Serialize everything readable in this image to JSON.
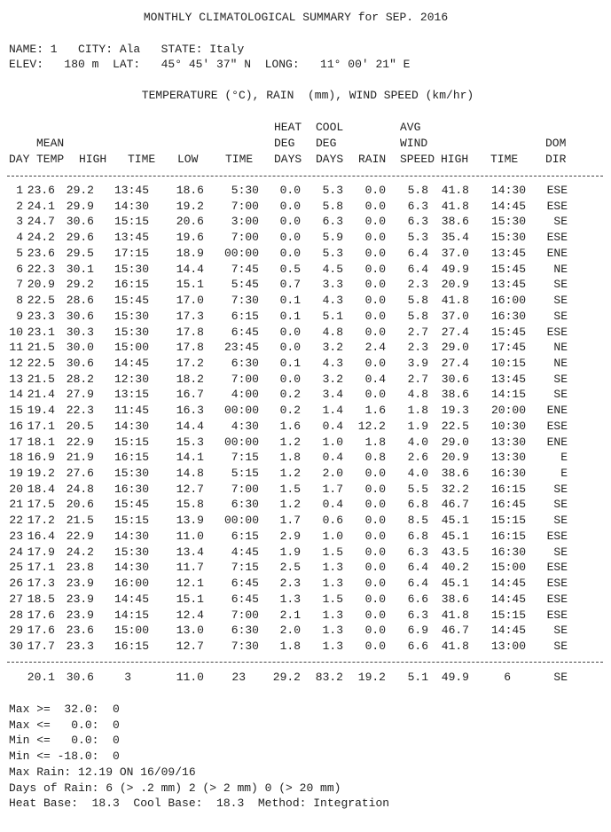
{
  "title": "MONTHLY CLIMATOLOGICAL SUMMARY for SEP. 2016",
  "station": {
    "line1": "NAME: 1   CITY: Ala   STATE: Italy",
    "line2": "ELEV:   180 m  LAT:   45° 45' 37\" N  LONG:   11° 00' 21\" E"
  },
  "units_heading": "TEMPERATURE (°C), RAIN  (mm), WIND SPEED (km/hr)",
  "columns": [
    {
      "lines": [
        "DAY"
      ]
    },
    {
      "lines": [
        "MEAN",
        "TEMP"
      ]
    },
    {
      "lines": [
        "HIGH"
      ]
    },
    {
      "lines": [
        "TIME"
      ]
    },
    {
      "lines": [
        "LOW"
      ]
    },
    {
      "lines": [
        "TIME"
      ]
    },
    {
      "lines": [
        "HEAT",
        "DEG",
        "DAYS"
      ]
    },
    {
      "lines": [
        "COOL",
        "DEG",
        "DAYS"
      ]
    },
    {
      "lines": [
        "RAIN"
      ]
    },
    {
      "lines": [
        "AVG",
        "WIND",
        "SPEED"
      ]
    },
    {
      "lines": [
        "HIGH"
      ]
    },
    {
      "lines": [
        "TIME"
      ]
    },
    {
      "lines": [
        "DOM",
        "DIR"
      ]
    }
  ],
  "rows": [
    [
      "1",
      "23.6",
      "29.2",
      "13:45",
      "18.6",
      "5:30",
      "0.0",
      "5.3",
      "0.0",
      "5.8",
      "41.8",
      "14:30",
      "ESE"
    ],
    [
      "2",
      "24.1",
      "29.9",
      "14:30",
      "19.2",
      "7:00",
      "0.0",
      "5.8",
      "0.0",
      "6.3",
      "41.8",
      "14:45",
      "ESE"
    ],
    [
      "3",
      "24.7",
      "30.6",
      "15:15",
      "20.6",
      "3:00",
      "0.0",
      "6.3",
      "0.0",
      "6.3",
      "38.6",
      "15:30",
      "SE"
    ],
    [
      "4",
      "24.2",
      "29.6",
      "13:45",
      "19.6",
      "7:00",
      "0.0",
      "5.9",
      "0.0",
      "5.3",
      "35.4",
      "15:30",
      "ESE"
    ],
    [
      "5",
      "23.6",
      "29.5",
      "17:15",
      "18.9",
      "00:00",
      "0.0",
      "5.3",
      "0.0",
      "6.4",
      "37.0",
      "13:45",
      "ENE"
    ],
    [
      "6",
      "22.3",
      "30.1",
      "15:30",
      "14.4",
      "7:45",
      "0.5",
      "4.5",
      "0.0",
      "6.4",
      "49.9",
      "15:45",
      "NE"
    ],
    [
      "7",
      "20.9",
      "29.2",
      "16:15",
      "15.1",
      "5:45",
      "0.7",
      "3.3",
      "0.0",
      "2.3",
      "20.9",
      "13:45",
      "SE"
    ],
    [
      "8",
      "22.5",
      "28.6",
      "15:45",
      "17.0",
      "7:30",
      "0.1",
      "4.3",
      "0.0",
      "5.8",
      "41.8",
      "16:00",
      "SE"
    ],
    [
      "9",
      "23.3",
      "30.6",
      "15:30",
      "17.3",
      "6:15",
      "0.1",
      "5.1",
      "0.0",
      "5.8",
      "37.0",
      "16:30",
      "SE"
    ],
    [
      "10",
      "23.1",
      "30.3",
      "15:30",
      "17.8",
      "6:45",
      "0.0",
      "4.8",
      "0.0",
      "2.7",
      "27.4",
      "15:45",
      "ESE"
    ],
    [
      "11",
      "21.5",
      "30.0",
      "15:00",
      "17.8",
      "23:45",
      "0.0",
      "3.2",
      "2.4",
      "2.3",
      "29.0",
      "17:45",
      "NE"
    ],
    [
      "12",
      "22.5",
      "30.6",
      "14:45",
      "17.2",
      "6:30",
      "0.1",
      "4.3",
      "0.0",
      "3.9",
      "27.4",
      "10:15",
      "NE"
    ],
    [
      "13",
      "21.5",
      "28.2",
      "12:30",
      "18.2",
      "7:00",
      "0.0",
      "3.2",
      "0.4",
      "2.7",
      "30.6",
      "13:45",
      "SE"
    ],
    [
      "14",
      "21.4",
      "27.9",
      "13:15",
      "16.7",
      "4:00",
      "0.2",
      "3.4",
      "0.0",
      "4.8",
      "38.6",
      "14:15",
      "SE"
    ],
    [
      "15",
      "19.4",
      "22.3",
      "11:45",
      "16.3",
      "00:00",
      "0.2",
      "1.4",
      "1.6",
      "1.8",
      "19.3",
      "20:00",
      "ENE"
    ],
    [
      "16",
      "17.1",
      "20.5",
      "14:30",
      "14.4",
      "4:30",
      "1.6",
      "0.4",
      "12.2",
      "1.9",
      "22.5",
      "10:30",
      "ESE"
    ],
    [
      "17",
      "18.1",
      "22.9",
      "15:15",
      "15.3",
      "00:00",
      "1.2",
      "1.0",
      "1.8",
      "4.0",
      "29.0",
      "13:30",
      "ENE"
    ],
    [
      "18",
      "16.9",
      "21.9",
      "16:15",
      "14.1",
      "7:15",
      "1.8",
      "0.4",
      "0.8",
      "2.6",
      "20.9",
      "13:30",
      "E"
    ],
    [
      "19",
      "19.2",
      "27.6",
      "15:30",
      "14.8",
      "5:15",
      "1.2",
      "2.0",
      "0.0",
      "4.0",
      "38.6",
      "16:30",
      "E"
    ],
    [
      "20",
      "18.4",
      "24.8",
      "16:30",
      "12.7",
      "7:00",
      "1.5",
      "1.7",
      "0.0",
      "5.5",
      "32.2",
      "16:15",
      "SE"
    ],
    [
      "21",
      "17.5",
      "20.6",
      "15:45",
      "15.8",
      "6:30",
      "1.2",
      "0.4",
      "0.0",
      "6.8",
      "46.7",
      "16:45",
      "SE"
    ],
    [
      "22",
      "17.2",
      "21.5",
      "15:15",
      "13.9",
      "00:00",
      "1.7",
      "0.6",
      "0.0",
      "8.5",
      "45.1",
      "15:15",
      "SE"
    ],
    [
      "23",
      "16.4",
      "22.9",
      "14:30",
      "11.0",
      "6:15",
      "2.9",
      "1.0",
      "0.0",
      "6.8",
      "45.1",
      "16:15",
      "ESE"
    ],
    [
      "24",
      "17.9",
      "24.2",
      "15:30",
      "13.4",
      "4:45",
      "1.9",
      "1.5",
      "0.0",
      "6.3",
      "43.5",
      "16:30",
      "SE"
    ],
    [
      "25",
      "17.1",
      "23.8",
      "14:30",
      "11.7",
      "7:15",
      "2.5",
      "1.3",
      "0.0",
      "6.4",
      "40.2",
      "15:00",
      "ESE"
    ],
    [
      "26",
      "17.3",
      "23.9",
      "16:00",
      "12.1",
      "6:45",
      "2.3",
      "1.3",
      "0.0",
      "6.4",
      "45.1",
      "14:45",
      "ESE"
    ],
    [
      "27",
      "18.5",
      "23.9",
      "14:45",
      "15.1",
      "6:45",
      "1.3",
      "1.5",
      "0.0",
      "6.6",
      "38.6",
      "14:45",
      "ESE"
    ],
    [
      "28",
      "17.6",
      "23.9",
      "14:15",
      "12.4",
      "7:00",
      "2.1",
      "1.3",
      "0.0",
      "6.3",
      "41.8",
      "15:15",
      "ESE"
    ],
    [
      "29",
      "17.6",
      "23.6",
      "15:00",
      "13.0",
      "6:30",
      "2.0",
      "1.3",
      "0.0",
      "6.9",
      "46.7",
      "14:45",
      "SE"
    ],
    [
      "30",
      "17.7",
      "23.3",
      "16:15",
      "12.7",
      "7:30",
      "1.8",
      "1.3",
      "0.0",
      "6.6",
      "41.8",
      "13:00",
      "SE"
    ]
  ],
  "totals": [
    "20.1",
    "30.6",
    "3",
    "11.0",
    "23",
    "29.2",
    "83.2",
    "19.2",
    "5.1",
    "49.9",
    "6",
    "SE"
  ],
  "footer": [
    "Max >=  32.0:  0",
    "Max <=   0.0:  0",
    "Min <=   0.0:  0",
    "Min <= -18.0:  0",
    "Max Rain: 12.19 ON 16/09/16",
    "Days of Rain: 6 (> .2 mm) 2 (> 2 mm) 0 (> 20 mm)",
    "Heat Base:  18.3  Cool Base:  18.3  Method: Integration"
  ]
}
